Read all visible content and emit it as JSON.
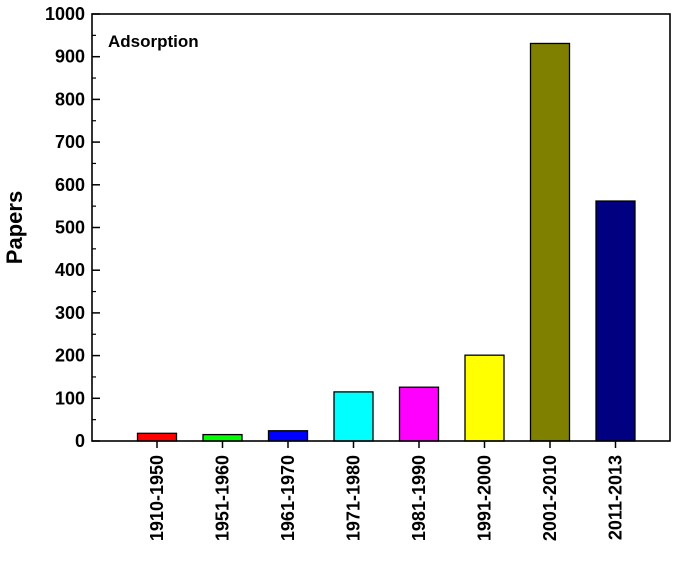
{
  "chart_data": {
    "type": "bar",
    "categories": [
      "1910-1950",
      "1951-1960",
      "1961-1970",
      "1971-1980",
      "1981-1990",
      "1991-2000",
      "2001-2010",
      "2011-2013"
    ],
    "values": [
      18,
      15,
      24,
      115,
      126,
      201,
      931,
      562
    ],
    "colors": [
      "#ff0000",
      "#00ff00",
      "#0000ff",
      "#00ffff",
      "#ff00ff",
      "#ffff00",
      "#808000",
      "#000080"
    ],
    "title": "",
    "xlabel": "",
    "ylabel": "Papers",
    "ylim": [
      0,
      1000
    ],
    "yticks": [
      "0",
      "100",
      "200",
      "300",
      "400",
      "500",
      "600",
      "700",
      "800",
      "900",
      "1000"
    ],
    "annotation": "Adsorption",
    "grid": false,
    "legend": "none"
  }
}
